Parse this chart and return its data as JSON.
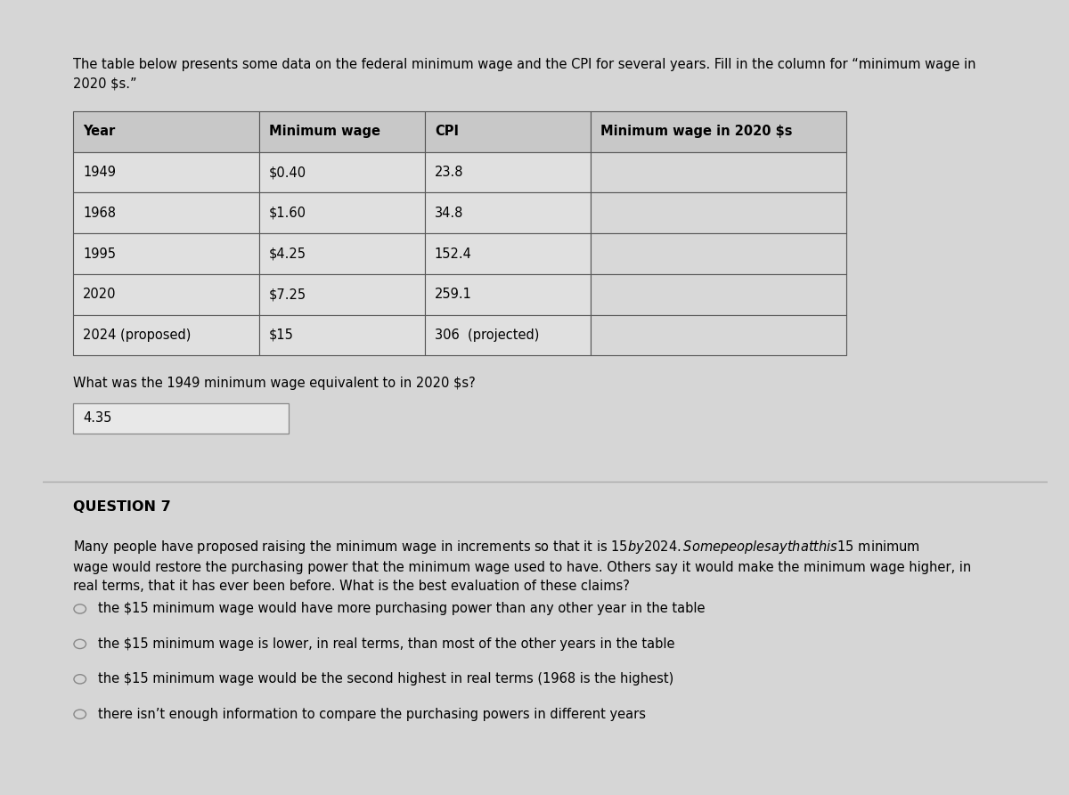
{
  "bg_color": "#d6d6d6",
  "content_bg": "#e8e8e8",
  "intro_text": "The table below presents some data on the federal minimum wage and the CPI for several years. Fill in the column for “minimum wage in\n2020 $s.”",
  "table_headers": [
    "Year",
    "Minimum wage",
    "CPI",
    "Minimum wage in 2020 $s"
  ],
  "table_rows": [
    [
      "1949",
      "$0.40",
      "23.8",
      ""
    ],
    [
      "1968",
      "$1.60",
      "34.8",
      ""
    ],
    [
      "1995",
      "$4.25",
      "152.4",
      ""
    ],
    [
      "2020",
      "$7.25",
      "259.1",
      ""
    ],
    [
      "2024 (proposed)",
      "$15",
      "306  (projected)",
      ""
    ]
  ],
  "question_text": "What was the 1949 minimum wage equivalent to in 2020 $s?",
  "answer_box_text": "4.35",
  "question7_label": "QUESTION 7",
  "question7_text": "Many people have proposed raising the minimum wage in increments so that it is $15 by 2024. Some people say that this $15 minimum\nwage would restore the purchasing power that the minimum wage used to have. Others say it would make the minimum wage higher, in\nreal terms, that it has ever been before. What is the best evaluation of these claims?",
  "options": [
    "the $15 minimum wage would have more purchasing power than any other year in the table",
    "the $15 minimum wage is lower, in real terms, than most of the other years in the table",
    "the $15 minimum wage would be the second highest in real terms (1968 is the highest)",
    "there isn’t enough information to compare the purchasing powers in different years"
  ],
  "header_font_size": 10.5,
  "cell_font_size": 10.5,
  "body_font_size": 10.5,
  "q7_font_size": 11.5
}
